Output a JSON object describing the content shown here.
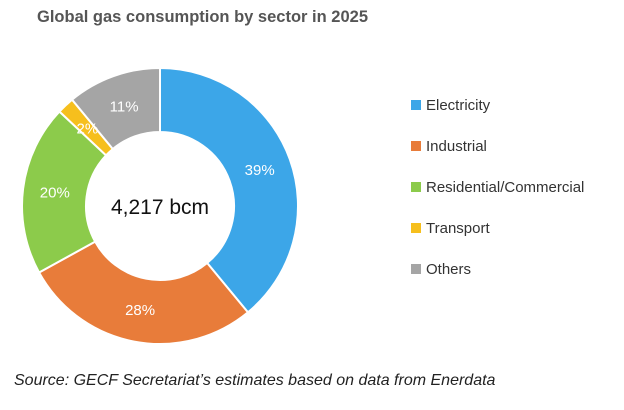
{
  "chart_data": {
    "type": "pie",
    "title": "Global gas consumption by sector in 2025",
    "center_label": "4,217 bcm",
    "categories": [
      "Electricity",
      "Industrial",
      "Residential/Commercial",
      "Transport",
      "Others"
    ],
    "values": [
      39,
      28,
      20,
      2,
      11
    ],
    "value_labels": [
      "39%",
      "28%",
      "20%",
      "2%",
      "11%"
    ],
    "colors": [
      "#3ca6e8",
      "#e87c3a",
      "#8ccb4b",
      "#f6bf1d",
      "#a5a5a5"
    ],
    "legend_position": "right",
    "donut": true
  },
  "source": "Source: GECF Secretariat’s estimates based on data from Enerdata"
}
